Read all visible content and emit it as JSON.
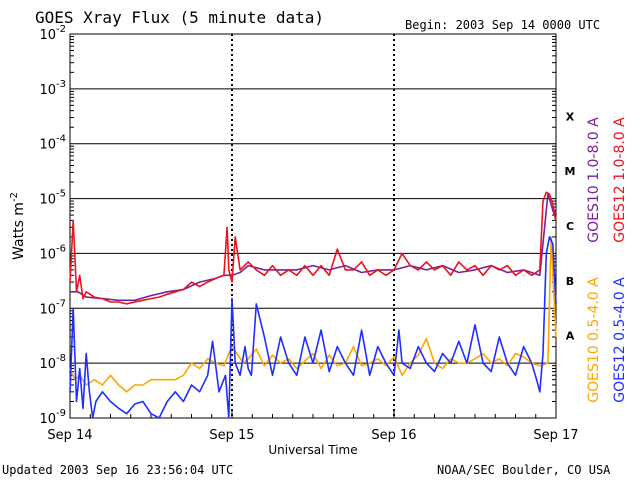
{
  "header": {
    "title": "GOES Xray Flux (5 minute data)",
    "begin": "Begin:  2003 Sep 14 0000 UTC"
  },
  "footer": {
    "updated": "Updated 2003 Sep 16 23:56:04 UTC",
    "credit": "NOAA/SEC Boulder, CO USA"
  },
  "colors": {
    "goes10_long": "#7a1fa0",
    "goes12_long": "#e8141e",
    "goes10_short": "#ffa500",
    "goes12_short": "#1f2fff"
  },
  "chart_data": {
    "type": "line",
    "title": "GOES Xray Flux (5 minute data)",
    "xlabel": "Universal Time",
    "ylabel": "Watts m",
    "ylabel_sup": "-2",
    "y_scale": "log",
    "ylim": [
      1e-09,
      0.01
    ],
    "xlim": [
      "2003-09-14",
      "2003-09-17"
    ],
    "x_ticks": [
      {
        "day": 0,
        "label": "Sep 14"
      },
      {
        "day": 1,
        "label": "Sep 15"
      },
      {
        "day": 2,
        "label": "Sep 16"
      },
      {
        "day": 3,
        "label": "Sep 17"
      }
    ],
    "y_ticks": [
      {
        "exp": -2,
        "base": "10",
        "sup": "-2"
      },
      {
        "exp": -3,
        "base": "10",
        "sup": "-3"
      },
      {
        "exp": -4,
        "base": "10",
        "sup": "-4"
      },
      {
        "exp": -5,
        "base": "10",
        "sup": "-5"
      },
      {
        "exp": -6,
        "base": "10",
        "sup": "-6"
      },
      {
        "exp": -7,
        "base": "10",
        "sup": "-7"
      },
      {
        "exp": -8,
        "base": "10",
        "sup": "-8"
      },
      {
        "exp": -9,
        "base": "10",
        "sup": "-9"
      }
    ],
    "flare_classes": [
      {
        "label": "X",
        "exp": -3.5
      },
      {
        "label": "M",
        "exp": -4.5
      },
      {
        "label": "C",
        "exp": -5.5
      },
      {
        "label": "B",
        "exp": -6.5
      },
      {
        "label": "A",
        "exp": -7.5
      }
    ],
    "right_labels": [
      {
        "text": "GOES10 1.0-8.0 A",
        "color": "#7a1fa0"
      },
      {
        "text": "GOES12 1.0-8.0 A",
        "color": "#e8141e"
      },
      {
        "text": "GOES10 0.5-4.0 A",
        "color": "#ffa500"
      },
      {
        "text": "GOES12 0.5-4.0 A",
        "color": "#1f2fff"
      }
    ],
    "series": [
      {
        "name": "GOES10 0.5-4.0 A",
        "color": "#ffa500",
        "x": [
          0.0,
          0.03,
          0.06,
          0.1,
          0.15,
          0.2,
          0.25,
          0.3,
          0.35,
          0.4,
          0.45,
          0.5,
          0.55,
          0.6,
          0.65,
          0.7,
          0.75,
          0.8,
          0.85,
          0.9,
          0.95,
          0.98,
          1.0,
          1.03,
          1.07,
          1.1,
          1.15,
          1.2,
          1.25,
          1.3,
          1.35,
          1.4,
          1.45,
          1.5,
          1.55,
          1.6,
          1.65,
          1.7,
          1.75,
          1.8,
          1.85,
          1.9,
          1.95,
          2.0,
          2.05,
          2.1,
          2.15,
          2.2,
          2.25,
          2.3,
          2.35,
          2.4,
          2.45,
          2.5,
          2.55,
          2.6,
          2.65,
          2.7,
          2.75,
          2.8,
          2.85,
          2.9,
          2.95,
          2.97,
          3.0
        ],
        "y": [
          8e-09,
          5e-09,
          6e-09,
          4e-09,
          5e-09,
          4e-09,
          6e-09,
          4e-09,
          3e-09,
          4e-09,
          4e-09,
          5e-09,
          5e-09,
          5e-09,
          5e-09,
          6e-09,
          1e-08,
          8e-09,
          1.2e-08,
          1e-08,
          9e-09,
          1.5e-08,
          2e-08,
          1.5e-08,
          1e-08,
          1.2e-08,
          1.8e-08,
          9e-09,
          1.4e-08,
          1e-08,
          1.2e-08,
          8e-09,
          1.1e-08,
          1.5e-08,
          8e-09,
          1.4e-08,
          9e-09,
          1e-08,
          2e-08,
          9e-09,
          1e-08,
          1.2e-08,
          9e-09,
          1.3e-08,
          6e-09,
          1e-08,
          1.4e-08,
          2.8e-08,
          1e-08,
          8e-09,
          1.2e-08,
          1e-08,
          1e-08,
          1.2e-08,
          1.5e-08,
          1e-08,
          1.2e-08,
          9e-09,
          1.5e-08,
          1.3e-08,
          1e-08,
          9e-09,
          1e-08,
          2e-06,
          3e-08
        ]
      },
      {
        "name": "GOES12 0.5-4.0 A",
        "color": "#1f2fff",
        "x": [
          0.0,
          0.02,
          0.04,
          0.06,
          0.08,
          0.1,
          0.12,
          0.14,
          0.16,
          0.2,
          0.25,
          0.3,
          0.35,
          0.4,
          0.45,
          0.5,
          0.55,
          0.6,
          0.65,
          0.7,
          0.75,
          0.8,
          0.85,
          0.88,
          0.92,
          0.96,
          0.98,
          1.0,
          1.02,
          1.05,
          1.08,
          1.1,
          1.12,
          1.15,
          1.2,
          1.25,
          1.3,
          1.35,
          1.4,
          1.45,
          1.5,
          1.55,
          1.6,
          1.65,
          1.7,
          1.75,
          1.8,
          1.85,
          1.9,
          1.95,
          2.0,
          2.03,
          2.05,
          2.1,
          2.15,
          2.2,
          2.25,
          2.3,
          2.35,
          2.4,
          2.45,
          2.5,
          2.55,
          2.6,
          2.65,
          2.7,
          2.75,
          2.8,
          2.85,
          2.88,
          2.9,
          2.92,
          2.94,
          2.96,
          2.98,
          3.0
        ],
        "y": [
          3e-09,
          1e-07,
          2e-09,
          8e-09,
          1.5e-09,
          1.5e-08,
          3e-09,
          1e-09,
          2e-09,
          3e-09,
          2e-09,
          1.5e-09,
          1.2e-09,
          1.8e-09,
          2e-09,
          1.2e-09,
          1e-09,
          2e-09,
          3e-09,
          2e-09,
          4e-09,
          3e-09,
          6e-09,
          2.5e-08,
          3e-09,
          6e-09,
          1e-09,
          1.5e-07,
          1e-08,
          6e-09,
          2e-08,
          8e-09,
          6e-09,
          1.2e-07,
          3e-08,
          6e-09,
          3e-08,
          1e-08,
          6e-09,
          3e-08,
          1e-08,
          4e-08,
          7e-09,
          2e-08,
          1e-08,
          6e-09,
          4e-08,
          6e-09,
          2e-08,
          1e-08,
          6e-09,
          4e-08,
          1e-08,
          8e-09,
          2e-08,
          1e-08,
          7e-09,
          1.5e-08,
          1e-08,
          2.5e-08,
          1e-08,
          5e-08,
          1e-08,
          7e-09,
          3e-08,
          1e-08,
          6e-09,
          2e-08,
          1e-08,
          5e-09,
          3e-09,
          1.5e-08,
          1e-06,
          2e-06,
          1.5e-06,
          1.2e-07
        ]
      },
      {
        "name": "GOES10 1.0-8.0 A",
        "color": "#7a1fa0",
        "x": [
          0.0,
          0.05,
          0.1,
          0.2,
          0.3,
          0.4,
          0.5,
          0.6,
          0.7,
          0.8,
          0.9,
          0.95,
          1.0,
          1.05,
          1.1,
          1.2,
          1.3,
          1.4,
          1.5,
          1.6,
          1.7,
          1.8,
          1.9,
          2.0,
          2.1,
          2.2,
          2.3,
          2.4,
          2.5,
          2.6,
          2.7,
          2.8,
          2.9,
          2.95,
          3.0
        ],
        "y": [
          2e-07,
          2e-07,
          1.6e-07,
          1.5e-07,
          1.4e-07,
          1.4e-07,
          1.7e-07,
          2e-07,
          2.2e-07,
          3e-07,
          3.5e-07,
          4e-07,
          4e-07,
          4.5e-07,
          6e-07,
          5e-07,
          5e-07,
          5e-07,
          6e-07,
          5e-07,
          6e-07,
          4.5e-07,
          5e-07,
          5e-07,
          6e-07,
          5e-07,
          6e-07,
          4.5e-07,
          5e-07,
          6e-07,
          4.5e-07,
          5e-07,
          4e-07,
          1.2e-05,
          4e-06
        ]
      },
      {
        "name": "GOES12 1.0-8.0 A",
        "color": "#e8141e",
        "x": [
          0.0,
          0.02,
          0.04,
          0.06,
          0.08,
          0.1,
          0.15,
          0.2,
          0.25,
          0.3,
          0.35,
          0.4,
          0.45,
          0.5,
          0.55,
          0.6,
          0.65,
          0.7,
          0.75,
          0.8,
          0.85,
          0.9,
          0.95,
          0.97,
          0.98,
          1.0,
          1.02,
          1.05,
          1.1,
          1.15,
          1.2,
          1.25,
          1.3,
          1.35,
          1.4,
          1.45,
          1.5,
          1.55,
          1.6,
          1.65,
          1.7,
          1.75,
          1.8,
          1.85,
          1.9,
          1.95,
          2.0,
          2.05,
          2.1,
          2.15,
          2.2,
          2.25,
          2.3,
          2.35,
          2.4,
          2.45,
          2.5,
          2.55,
          2.6,
          2.65,
          2.7,
          2.75,
          2.8,
          2.85,
          2.9,
          2.92,
          2.94,
          2.96,
          2.98,
          3.0
        ],
        "y": [
          3e-07,
          4e-06,
          2e-07,
          4e-07,
          1.5e-07,
          2e-07,
          1.6e-07,
          1.5e-07,
          1.3e-07,
          1.3e-07,
          1.2e-07,
          1.3e-07,
          1.4e-07,
          1.5e-07,
          1.6e-07,
          1.8e-07,
          2e-07,
          2.2e-07,
          3e-07,
          2.5e-07,
          3e-07,
          3.5e-07,
          4e-07,
          3e-06,
          5e-07,
          3e-07,
          2e-06,
          5e-07,
          7e-07,
          5e-07,
          4e-07,
          6e-07,
          4e-07,
          5e-07,
          4e-07,
          6e-07,
          4e-07,
          6e-07,
          4e-07,
          1.2e-06,
          5e-07,
          5e-07,
          7e-07,
          4e-07,
          5e-07,
          4e-07,
          5e-07,
          1e-06,
          6e-07,
          5e-07,
          7e-07,
          5e-07,
          6e-07,
          4e-07,
          7e-07,
          5e-07,
          6e-07,
          4e-07,
          6e-07,
          5e-07,
          6e-07,
          4e-07,
          5e-07,
          4e-07,
          5e-07,
          9e-06,
          1.3e-05,
          1.2e-05,
          8e-06,
          4e-06
        ]
      }
    ]
  }
}
